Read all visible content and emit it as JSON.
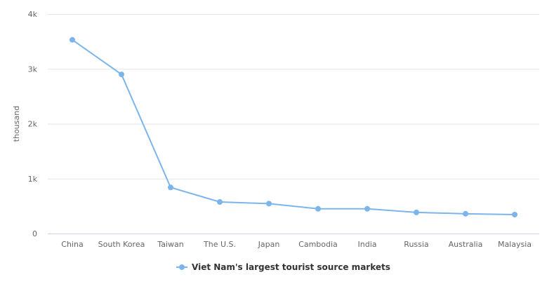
{
  "chart_data": {
    "type": "line",
    "title": "",
    "xlabel": "",
    "ylabel": "thousand",
    "ylim": [
      0,
      4000
    ],
    "yticks": [
      0,
      1000,
      2000,
      3000,
      4000
    ],
    "ytick_labels": [
      "0",
      "1k",
      "2k",
      "3k",
      "4k"
    ],
    "grid": true,
    "legend": "bottom-center",
    "categories": [
      "China",
      "South Korea",
      "Taiwan",
      "The U.S.",
      "Japan",
      "Cambodia",
      "India",
      "Russia",
      "Australia",
      "Malaysia"
    ],
    "series": [
      {
        "name": "Viet Nam's largest tourist source markets",
        "color": "#7cb5ec",
        "values": [
          3530,
          2900,
          840,
          575,
          545,
          450,
          450,
          385,
          360,
          345
        ]
      }
    ]
  }
}
